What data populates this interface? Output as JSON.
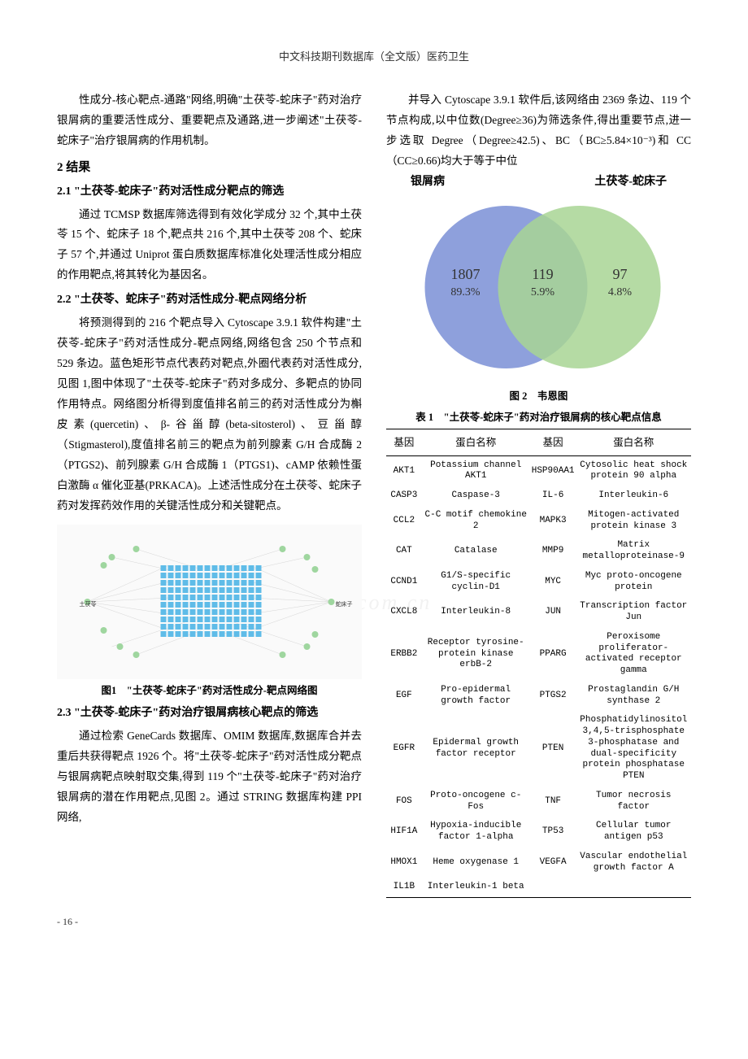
{
  "header": "中文科技期刊数据库（全文版）医药卫生",
  "page_number": "- 16 -",
  "watermark": "xin.com.cn",
  "left_col": {
    "intro_para": "性成分-核心靶点-通路\"网络,明确\"土茯苓-蛇床子\"药对治疗银屑病的重要活性成分、重要靶点及通路,进一步阐述\"土茯苓-蛇床子\"治疗银屑病的作用机制。",
    "h2": "2 结果",
    "h2_1": "2.1 \"土茯苓-蛇床子\"药对活性成分靶点的筛选",
    "p2_1": "通过 TCMSP 数据库筛选得到有效化学成分 32 个,其中土茯苓 15 个、蛇床子 18 个,靶点共 216 个,其中土茯苓 208 个、蛇床子 57 个,并通过 Uniprot 蛋白质数据库标准化处理活性成分相应的作用靶点,将其转化为基因名。",
    "h2_2": "2.2 \"土茯苓、蛇床子\"药对活性成分-靶点网络分析",
    "p2_2": "将预测得到的 216 个靶点导入 Cytoscape 3.9.1 软件构建\"土茯苓-蛇床子\"药对活性成分-靶点网络,网络包含 250 个节点和 529 条边。蓝色矩形节点代表药对靶点,外圈代表药对活性成分,见图 1,图中体现了\"土茯苓-蛇床子\"药对多成分、多靶点的协同作用特点。网络图分析得到度值排名前三的药对活性成分为槲皮素(quercetin)、β-谷甾醇(beta-sitosterol)、豆甾醇（Stigmasterol),度值排名前三的靶点为前列腺素 G/H 合成酶 2（PTGS2)、前列腺素 G/H 合成酶 1（PTGS1)、cAMP 依赖性蛋白激酶 α 催化亚基(PRKACA)。上述活性成分在土茯苓、蛇床子药对发挥药效作用的关键活性成分和关键靶点。",
    "fig1_caption": "图1　\"土茯苓-蛇床子\"药对活性成分-靶点网络图",
    "fig1_left_label": "土茯苓",
    "fig1_right_label": "蛇床子",
    "h2_3": "2.3 \"土茯苓-蛇床子\"药对治疗银屑病核心靶点的筛选",
    "p2_3": "通过检索 GeneCards 数据库、OMIM 数据库,数据库合并去重后共获得靶点 1926 个。将\"土茯苓-蛇床子\"药对活性成分靶点与银屑病靶点映射取交集,得到 119 个\"土茯苓-蛇床子\"药对治疗银屑病的潜在作用靶点,见图 2。通过 STRING 数据库构建 PPI 网络,"
  },
  "right_col": {
    "p_top": "并导入 Cytoscape 3.9.1 软件后,该网络由 2369 条边、119 个节点构成,以中位数(Degree≥36)为筛选条件,得出重要节点,进一步选取 Degree（Degree≥42.5)、BC（BC≥5.84×10⁻³)和 CC（CC≥0.66)均大于等于中位",
    "venn": {
      "label_left": "银屑病",
      "label_right": "土茯苓-蛇床子",
      "left_n": "1807",
      "left_pct": "89.3%",
      "mid_n": "119",
      "mid_pct": "5.9%",
      "right_n": "97",
      "right_pct": "4.8%",
      "left_color": "#7a8fd6",
      "right_color": "#a8d594",
      "overlap_color": "#8fb5b0"
    },
    "fig2_caption": "图 2　韦恩图",
    "table1_caption": "表 1　\"土茯苓-蛇床子\"药对治疗银屑病的核心靶点信息",
    "table_headers": [
      "基因",
      "蛋白名称",
      "基因",
      "蛋白名称"
    ],
    "table_rows": [
      [
        "AKT1",
        "Potassium channel AKT1",
        "HSP90AA1",
        "Cytosolic heat shock protein 90 alpha"
      ],
      [
        "CASP3",
        "Caspase-3",
        "IL-6",
        "Interleukin-6"
      ],
      [
        "CCL2",
        "C-C motif chemokine 2",
        "MAPK3",
        "Mitogen-activated protein kinase 3"
      ],
      [
        "CAT",
        "Catalase",
        "MMP9",
        "Matrix metalloproteinase-9"
      ],
      [
        "CCND1",
        "G1/S-specific cyclin-D1",
        "MYC",
        "Myc proto-oncogene protein"
      ],
      [
        "CXCL8",
        "Interleukin-8",
        "JUN",
        "Transcription factor Jun"
      ],
      [
        "ERBB2",
        "Receptor tyrosine-protein kinase erbB-2",
        "PPARG",
        "Peroxisome proliferator-activated receptor gamma"
      ],
      [
        "EGF",
        "Pro-epidermal growth factor",
        "PTGS2",
        "Prostaglandin G/H synthase 2"
      ],
      [
        "EGFR",
        "Epidermal growth factor receptor",
        "PTEN",
        "Phosphatidylinositol 3,4,5-trisphosphate 3-phosphatase and dual-specificity protein phosphatase PTEN"
      ],
      [
        "FOS",
        "Proto-oncogene c-Fos",
        "TNF",
        "Tumor necrosis factor"
      ],
      [
        "HIF1A",
        "Hypoxia-inducible factor 1-alpha",
        "TP53",
        "Cellular tumor antigen p53"
      ],
      [
        "HMOX1",
        "Heme oxygenase 1",
        "VEGFA",
        "Vascular endothelial growth factor A"
      ],
      [
        "IL1B",
        "Interleukin-1 beta",
        "",
        ""
      ]
    ]
  },
  "network_fig": {
    "grid_color": "#5fbce8",
    "line_color": "#cccccc",
    "outer_node_color": "#9fd69f"
  }
}
